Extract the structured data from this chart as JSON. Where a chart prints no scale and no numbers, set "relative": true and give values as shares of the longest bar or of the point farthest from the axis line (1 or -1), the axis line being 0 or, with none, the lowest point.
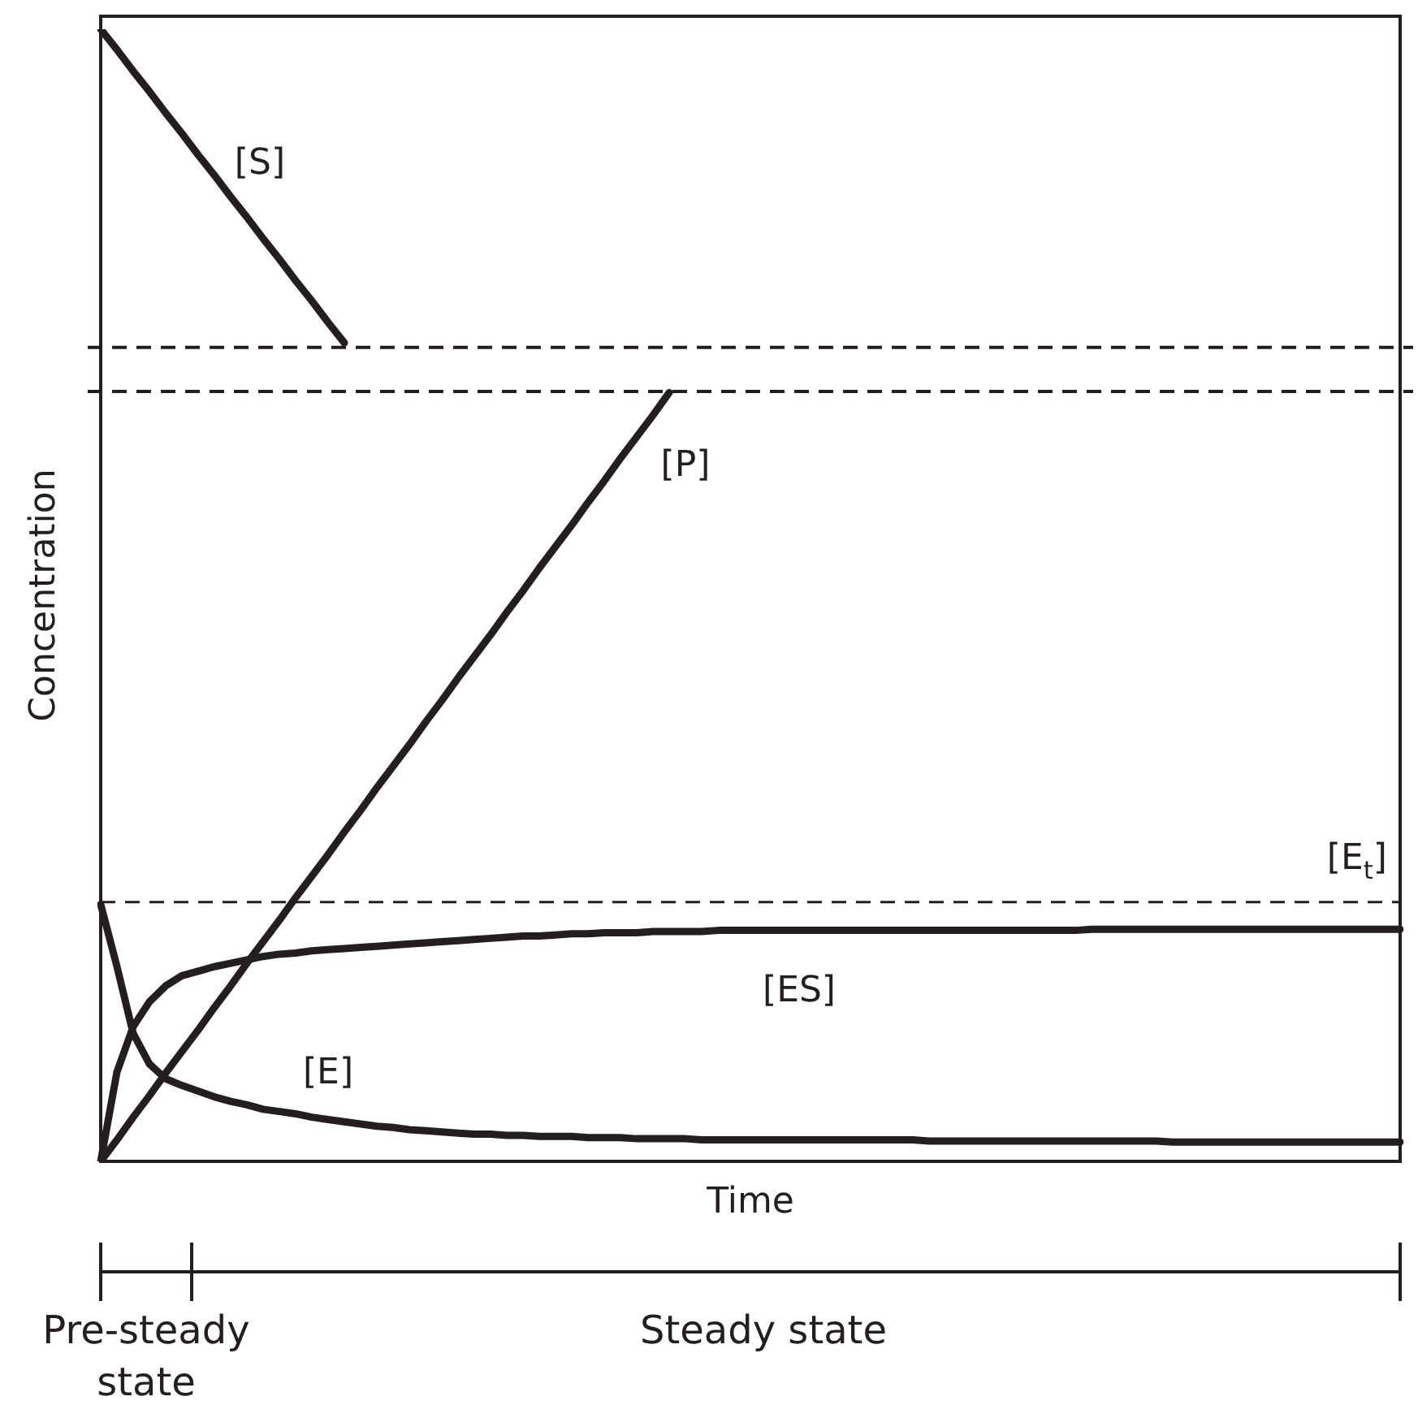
{
  "chart_data": {
    "type": "line",
    "relative": true,
    "xlabel": "Time",
    "ylabel": "Concentration",
    "categories": [
      null,
      null,
      null,
      null,
      null,
      null,
      null,
      null,
      null,
      null,
      null,
      null,
      null,
      null,
      null,
      null,
      null,
      null,
      null,
      null,
      null,
      null,
      null,
      null,
      null,
      null,
      null,
      null,
      null,
      null,
      null,
      null,
      null,
      null,
      null,
      null,
      null,
      null,
      null,
      null,
      null,
      null,
      null,
      null,
      null,
      null,
      null,
      null,
      null,
      null,
      null,
      null,
      null,
      null,
      null,
      null,
      null,
      null,
      null,
      null,
      null,
      null,
      null,
      null,
      null,
      null,
      null,
      null,
      null,
      null,
      null,
      null,
      null,
      null,
      null,
      null,
      null,
      null,
      null,
      null,
      null
    ],
    "series": [
      {
        "name": "[S]",
        "color": "#231f20",
        "values": [
          1,
          0.982,
          0.963,
          0.945,
          0.926,
          0.908,
          0.889,
          0.871,
          0.852,
          0.834,
          0.815,
          0.797,
          0.778,
          0.76,
          0.741,
          0.723,
          null,
          null,
          null,
          null,
          null,
          null,
          null,
          null,
          null,
          null,
          null,
          null,
          null,
          null,
          null,
          null,
          null,
          null,
          null,
          null,
          null,
          null,
          null,
          null,
          null,
          null,
          null,
          null,
          null,
          null,
          null,
          null,
          null,
          null,
          null,
          null,
          null,
          null,
          null,
          null,
          null,
          null,
          null,
          null,
          null,
          null,
          null,
          null,
          null,
          null,
          null,
          null,
          null,
          null,
          null,
          null,
          null,
          null,
          null,
          null,
          null,
          null,
          null,
          null,
          null
        ]
      },
      {
        "name": "[P]",
        "color": "#231f20",
        "values": [
          0,
          0.019,
          0.039,
          0.058,
          0.078,
          0.097,
          0.116,
          0.136,
          0.155,
          0.175,
          0.194,
          0.213,
          0.233,
          0.252,
          0.271,
          0.291,
          0.31,
          0.33,
          0.349,
          0.368,
          0.388,
          0.407,
          0.427,
          0.446,
          0.465,
          0.485,
          0.504,
          0.524,
          0.543,
          0.562,
          0.582,
          0.601,
          0.621,
          0.64,
          0.659,
          0.679,
          null,
          null,
          null,
          null,
          null,
          null,
          null,
          null,
          null,
          null,
          null,
          null,
          null,
          null,
          null,
          null,
          null,
          null,
          null,
          null,
          null,
          null,
          null,
          null,
          null,
          null,
          null,
          null,
          null,
          null,
          null,
          null,
          null,
          null,
          null,
          null,
          null,
          null,
          null,
          null,
          null,
          null,
          null,
          null,
          null
        ]
      },
      {
        "name": "[ES]",
        "color": "#231f20",
        "values": [
          0,
          0.079,
          0.119,
          0.141,
          0.155,
          0.164,
          0.168,
          0.172,
          0.175,
          0.178,
          0.181,
          0.183,
          0.184,
          0.186,
          0.187,
          0.188,
          0.189,
          0.19,
          0.191,
          0.192,
          0.193,
          0.194,
          0.195,
          0.196,
          0.197,
          0.198,
          0.199,
          0.199,
          0.2,
          0.201,
          0.201,
          0.202,
          0.202,
          0.202,
          0.203,
          0.203,
          0.203,
          0.203,
          0.204,
          0.204,
          0.204,
          0.204,
          0.204,
          0.204,
          0.204,
          0.204,
          0.204,
          0.204,
          0.204,
          0.204,
          0.204,
          0.204,
          0.204,
          0.204,
          0.204,
          0.204,
          0.204,
          0.204,
          0.204,
          0.204,
          0.204,
          0.205,
          0.205,
          0.205,
          0.205,
          0.205,
          0.205,
          0.205,
          0.205,
          0.205,
          0.205,
          0.205,
          0.205,
          0.205,
          0.205,
          0.205,
          0.205,
          0.205,
          0.205,
          0.205,
          0.205
        ]
      },
      {
        "name": "[E]",
        "color": "#231f20",
        "values": [
          0.227,
          0.172,
          0.113,
          0.086,
          0.073,
          0.067,
          0.062,
          0.057,
          0.053,
          0.05,
          0.046,
          0.044,
          0.042,
          0.039,
          0.037,
          0.035,
          0.033,
          0.031,
          0.03,
          0.028,
          0.027,
          0.026,
          0.025,
          0.024,
          0.024,
          0.023,
          0.023,
          0.022,
          0.022,
          0.022,
          0.021,
          0.021,
          0.021,
          0.02,
          0.02,
          0.02,
          0.02,
          0.019,
          0.019,
          0.019,
          0.019,
          0.019,
          0.019,
          0.019,
          0.019,
          0.019,
          0.019,
          0.019,
          0.019,
          0.019,
          0.019,
          0.018,
          0.018,
          0.018,
          0.018,
          0.018,
          0.018,
          0.018,
          0.018,
          0.018,
          0.018,
          0.018,
          0.018,
          0.018,
          0.018,
          0.018,
          0.017,
          0.017,
          0.017,
          0.017,
          0.017,
          0.017,
          0.017,
          0.017,
          0.017,
          0.017,
          0.017,
          0.017,
          0.017,
          0.017,
          0.017
        ]
      }
    ],
    "ref_lines": [
      {
        "axis": "y",
        "value": 0.229,
        "label": "[E$_{t}$]",
        "color": "#231f20",
        "line_style": "dashed"
      },
      {
        "axis": "y",
        "value": 0.68,
        "color": "#231f20",
        "line_style": "dashed"
      },
      {
        "axis": "y",
        "value": 0.719,
        "color": "#231f20",
        "line_style": "dashed"
      }
    ],
    "annotations": [
      "Pre-steady state",
      "Steady state"
    ]
  }
}
